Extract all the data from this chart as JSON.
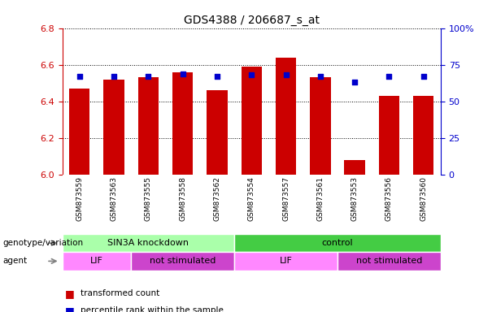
{
  "title": "GDS4388 / 206687_s_at",
  "samples": [
    "GSM873559",
    "GSM873563",
    "GSM873555",
    "GSM873558",
    "GSM873562",
    "GSM873554",
    "GSM873557",
    "GSM873561",
    "GSM873553",
    "GSM873556",
    "GSM873560"
  ],
  "bar_values": [
    6.47,
    6.52,
    6.53,
    6.56,
    6.46,
    6.59,
    6.64,
    6.53,
    6.08,
    6.43,
    6.43
  ],
  "dot_values": [
    67,
    67,
    67,
    69,
    67,
    68,
    68,
    67,
    63,
    67,
    67
  ],
  "ymin": 6.0,
  "ymax": 6.8,
  "y2min": 0,
  "y2max": 100,
  "yticks": [
    6.0,
    6.2,
    6.4,
    6.6,
    6.8
  ],
  "y2ticks": [
    0,
    25,
    50,
    75,
    100
  ],
  "y2tick_labels": [
    "0",
    "25",
    "50",
    "75",
    "100%"
  ],
  "bar_color": "#cc0000",
  "dot_color": "#0000cc",
  "bar_width": 0.6,
  "left_tick_color": "#cc0000",
  "right_tick_color": "#0000cc",
  "grid_color": "black",
  "background_labels": "#c8c8c8",
  "genotype_groups": [
    {
      "label": "SIN3A knockdown",
      "start": 0,
      "end": 5,
      "color": "#aaffaa"
    },
    {
      "label": "control",
      "start": 5,
      "end": 11,
      "color": "#44cc44"
    }
  ],
  "agent_groups": [
    {
      "label": "LIF",
      "start": 0,
      "end": 2,
      "color": "#ff88ff"
    },
    {
      "label": "not stimulated",
      "start": 2,
      "end": 5,
      "color": "#cc44cc"
    },
    {
      "label": "LIF",
      "start": 5,
      "end": 8,
      "color": "#ff88ff"
    },
    {
      "label": "not stimulated",
      "start": 8,
      "end": 11,
      "color": "#cc44cc"
    }
  ],
  "legend_red_label": "transformed count",
  "legend_blue_label": "percentile rank within the sample",
  "label_genotype": "genotype/variation",
  "label_agent": "agent",
  "title_fontsize": 10,
  "tick_fontsize": 8,
  "sample_fontsize": 6.5,
  "row_label_fontsize": 7.5,
  "group_fontsize": 8
}
